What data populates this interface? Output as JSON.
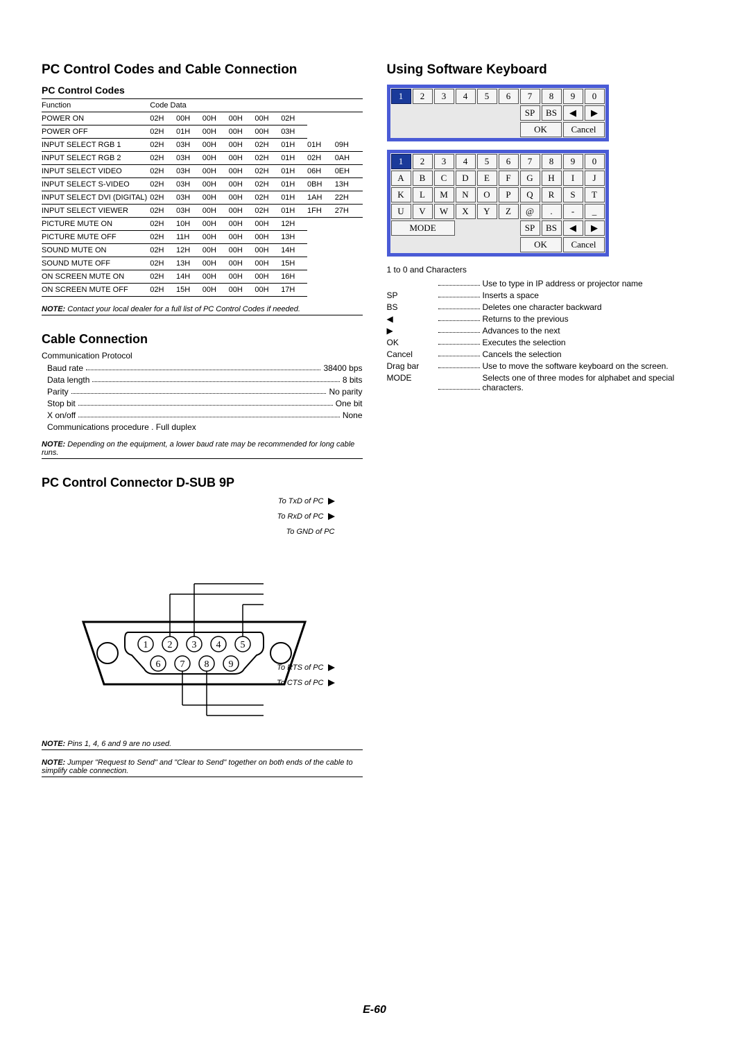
{
  "titles": {
    "main_left": "PC Control Codes and Cable Connection",
    "sub_codes": "PC Control Codes",
    "cable": "Cable Connection",
    "connector": "PC Control Connector D-SUB 9P",
    "main_right": "Using Software Keyboard"
  },
  "codes_table": {
    "headers": [
      "Function",
      "Code Data"
    ],
    "rows": [
      {
        "fn": "POWER ON",
        "data": [
          "02H",
          "00H",
          "00H",
          "00H",
          "00H",
          "02H"
        ]
      },
      {
        "fn": "POWER OFF",
        "data": [
          "02H",
          "01H",
          "00H",
          "00H",
          "00H",
          "03H"
        ]
      },
      {
        "fn": "INPUT SELECT RGB 1",
        "data": [
          "02H",
          "03H",
          "00H",
          "00H",
          "02H",
          "01H",
          "01H",
          "09H"
        ]
      },
      {
        "fn": "INPUT SELECT RGB 2",
        "data": [
          "02H",
          "03H",
          "00H",
          "00H",
          "02H",
          "01H",
          "02H",
          "0AH"
        ]
      },
      {
        "fn": "INPUT SELECT VIDEO",
        "data": [
          "02H",
          "03H",
          "00H",
          "00H",
          "02H",
          "01H",
          "06H",
          "0EH"
        ]
      },
      {
        "fn": "INPUT SELECT S-VIDEO",
        "data": [
          "02H",
          "03H",
          "00H",
          "00H",
          "02H",
          "01H",
          "0BH",
          "13H"
        ]
      },
      {
        "fn": "INPUT SELECT DVI (DIGITAL)",
        "data": [
          "02H",
          "03H",
          "00H",
          "00H",
          "02H",
          "01H",
          "1AH",
          "22H"
        ]
      },
      {
        "fn": "INPUT SELECT VIEWER",
        "data": [
          "02H",
          "03H",
          "00H",
          "00H",
          "02H",
          "01H",
          "1FH",
          "27H"
        ]
      },
      {
        "fn": "PICTURE MUTE ON",
        "data": [
          "02H",
          "10H",
          "00H",
          "00H",
          "00H",
          "12H"
        ]
      },
      {
        "fn": "PICTURE MUTE OFF",
        "data": [
          "02H",
          "11H",
          "00H",
          "00H",
          "00H",
          "13H"
        ]
      },
      {
        "fn": "SOUND MUTE ON",
        "data": [
          "02H",
          "12H",
          "00H",
          "00H",
          "00H",
          "14H"
        ]
      },
      {
        "fn": "SOUND MUTE OFF",
        "data": [
          "02H",
          "13H",
          "00H",
          "00H",
          "00H",
          "15H"
        ]
      },
      {
        "fn": "ON SCREEN MUTE ON",
        "data": [
          "02H",
          "14H",
          "00H",
          "00H",
          "00H",
          "16H"
        ]
      },
      {
        "fn": "ON SCREEN MUTE OFF",
        "data": [
          "02H",
          "15H",
          "00H",
          "00H",
          "00H",
          "17H"
        ]
      }
    ]
  },
  "note_codes": "Contact your local dealer for a full list of PC Control Codes if needed.",
  "protocol": {
    "title": "Communication Protocol",
    "rows": [
      {
        "label": "Baud rate",
        "value": "38400 bps"
      },
      {
        "label": "Data length",
        "value": "8 bits"
      },
      {
        "label": "Parity",
        "value": "No parity"
      },
      {
        "label": "Stop bit",
        "value": "One bit"
      },
      {
        "label": "X on/off",
        "value": "None"
      },
      {
        "label": "Communications procedure",
        "value": "Full duplex"
      }
    ]
  },
  "note_cable": "Depending on the equipment, a lower baud rate may be recommended for long cable runs.",
  "connector": {
    "labels": {
      "txd": "To TxD of PC",
      "rxd": "To RxD of PC",
      "gnd": "To GND of PC",
      "rts": "To RTS of PC",
      "cts": "To CTS of PC"
    }
  },
  "note_pins": "Pins 1, 4, 6 and 9 are no used.",
  "note_jumper": "Jumper \"Request to Send\" and \"Clear to Send\" together on both ends of the cable to simplify cable connection.",
  "keyboard1": {
    "rows": [
      [
        "1",
        "2",
        "3",
        "4",
        "5",
        "6",
        "7",
        "8",
        "9",
        "0"
      ]
    ],
    "ctrl_row1": [
      "SP",
      "BS",
      "◀",
      "▶"
    ],
    "ctrl_row2": [
      "OK",
      "Cancel"
    ]
  },
  "keyboard2": {
    "rows": [
      [
        "1",
        "2",
        "3",
        "4",
        "5",
        "6",
        "7",
        "8",
        "9",
        "0"
      ],
      [
        "A",
        "B",
        "C",
        "D",
        "E",
        "F",
        "G",
        "H",
        "I",
        "J"
      ],
      [
        "K",
        "L",
        "M",
        "N",
        "O",
        "P",
        "Q",
        "R",
        "S",
        "T"
      ],
      [
        "U",
        "V",
        "W",
        "X",
        "Y",
        "Z",
        "@",
        ".",
        "-",
        "_"
      ]
    ],
    "mode": "MODE",
    "ctrl_row1": [
      "SP",
      "BS",
      "◀",
      "▶"
    ],
    "ctrl_row2": [
      "OK",
      "Cancel"
    ]
  },
  "legend": {
    "title": "1 to 0 and Characters",
    "rows": [
      {
        "label": "",
        "value": "Use to type in IP address or projector name"
      },
      {
        "label": "SP",
        "value": "Inserts a space"
      },
      {
        "label": "BS",
        "value": "Deletes one character backward"
      },
      {
        "label": "◀",
        "value": "Returns to the previous"
      },
      {
        "label": "▶",
        "value": "Advances to the next"
      },
      {
        "label": "OK",
        "value": "Executes the selection"
      },
      {
        "label": "Cancel",
        "value": "Cancels the selection"
      },
      {
        "label": "Drag bar",
        "value": "Use to move the software keyboard on the screen."
      },
      {
        "label": "MODE",
        "value": "Selects one of three modes for alphabet and special characters."
      }
    ]
  },
  "page": "E-60",
  "note_prefix": "NOTE:"
}
